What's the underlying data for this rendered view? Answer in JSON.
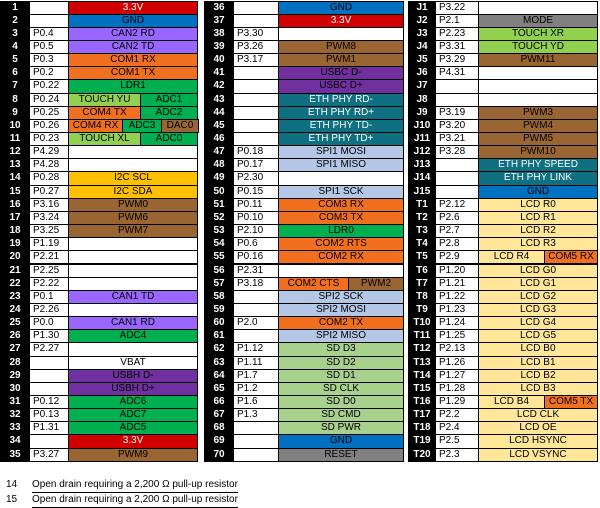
{
  "colors": {
    "red": "#d00000",
    "blue": "#0070c0",
    "gray": "#808080",
    "orange": "#f07020",
    "green": "#92d050",
    "green_dark": "#00b050",
    "blue_dark": "#0070c0",
    "purple": "#7030a0",
    "purple_light": "#9966ff",
    "teal": "#0e7080",
    "yellow": "#ffc000",
    "brown": "#996633",
    "lightblue": "#b4c7e7",
    "sage": "#a9d18e",
    "pale_yellow": "#ffe699",
    "white": "#ffffff"
  },
  "columns": [
    {
      "rows": [
        {
          "num": "1",
          "port": "",
          "funcs": [
            {
              "t": "3.3V",
              "c": "red"
            }
          ]
        },
        {
          "num": "2",
          "port": "",
          "funcs": [
            {
              "t": "GND",
              "c": "blue"
            }
          ]
        },
        {
          "num": "3",
          "port": "P0.4",
          "funcs": [
            {
              "t": "CAN2 RD",
              "c": "purple_light"
            }
          ]
        },
        {
          "num": "4",
          "port": "P0.5",
          "funcs": [
            {
              "t": "CAN2 TD",
              "c": "purple_light"
            }
          ]
        },
        {
          "num": "5",
          "port": "P0.3",
          "funcs": [
            {
              "t": "COM1 RX",
              "c": "orange"
            }
          ]
        },
        {
          "num": "6",
          "port": "P0.2",
          "funcs": [
            {
              "t": "COM1 TX",
              "c": "orange"
            }
          ]
        },
        {
          "num": "7",
          "port": "P0.22",
          "funcs": [
            {
              "t": "LDR1",
              "c": "green_dark"
            }
          ]
        },
        {
          "num": "8",
          "port": "P0.24",
          "funcs": [
            {
              "t": "TOUCH YU",
              "c": "green"
            },
            {
              "t": "ADC1",
              "c": "green_dark"
            }
          ]
        },
        {
          "num": "9",
          "port": "P0.25",
          "funcs": [
            {
              "t": "COM4 TX",
              "c": "orange"
            },
            {
              "t": "ADC2",
              "c": "green_dark"
            }
          ]
        },
        {
          "num": "10",
          "port": "P0.26",
          "funcs": [
            {
              "t": "COM4 RX",
              "c": "orange"
            },
            {
              "t": "ADC3",
              "c": "green_dark"
            },
            {
              "t": "DAC0",
              "c": "brown"
            }
          ]
        },
        {
          "num": "11",
          "port": "P0.23",
          "funcs": [
            {
              "t": "TOUCH XL",
              "c": "green"
            },
            {
              "t": "ADC0",
              "c": "green_dark"
            }
          ]
        },
        {
          "num": "12",
          "port": "P4.29",
          "funcs": []
        },
        {
          "num": "13",
          "port": "P4.28",
          "funcs": []
        },
        {
          "num": "14",
          "port": "P0.28",
          "funcs": [
            {
              "t": "I2C SCL",
              "c": "yellow"
            }
          ]
        },
        {
          "num": "15",
          "port": "P0.27",
          "funcs": [
            {
              "t": "I2C SDA",
              "c": "yellow"
            }
          ]
        },
        {
          "num": "16",
          "port": "P3.16",
          "funcs": [
            {
              "t": "PWM0",
              "c": "brown"
            }
          ]
        },
        {
          "num": "17",
          "port": "P3.24",
          "funcs": [
            {
              "t": "PWM6",
              "c": "brown"
            }
          ]
        },
        {
          "num": "18",
          "port": "P3.25",
          "funcs": [
            {
              "t": "PWM7",
              "c": "brown"
            }
          ]
        },
        {
          "num": "19",
          "port": "P1.19",
          "funcs": []
        },
        {
          "num": "20",
          "port": "P2.21",
          "funcs": []
        },
        {
          "num": "21",
          "port": "P2.25",
          "funcs": []
        },
        {
          "num": "22",
          "port": "P2.22",
          "funcs": []
        },
        {
          "num": "23",
          "port": "P0.1",
          "funcs": [
            {
              "t": "CAN1 TD",
              "c": "purple_light"
            }
          ]
        },
        {
          "num": "24",
          "port": "P2.26",
          "funcs": []
        },
        {
          "num": "25",
          "port": "P0.0",
          "funcs": [
            {
              "t": "CAN1 RD",
              "c": "purple_light"
            }
          ]
        },
        {
          "num": "26",
          "port": "P1.30",
          "funcs": [
            {
              "t": "ADC4",
              "c": "green_dark"
            }
          ]
        },
        {
          "num": "27",
          "port": "P2.27",
          "funcs": []
        },
        {
          "num": "28",
          "port": "",
          "funcs": [
            {
              "t": "VBAT",
              "c": "white"
            }
          ]
        },
        {
          "num": "29",
          "port": "",
          "funcs": [
            {
              "t": "USBH D-",
              "c": "purple"
            }
          ]
        },
        {
          "num": "30",
          "port": "",
          "funcs": [
            {
              "t": "USBH D+",
              "c": "purple"
            }
          ]
        },
        {
          "num": "31",
          "port": "P0.12",
          "funcs": [
            {
              "t": "ADC6",
              "c": "green_dark"
            }
          ]
        },
        {
          "num": "32",
          "port": "P0.13",
          "funcs": [
            {
              "t": "ADC7",
              "c": "green_dark"
            }
          ]
        },
        {
          "num": "33",
          "port": "P1.31",
          "funcs": [
            {
              "t": "ADC5",
              "c": "green_dark"
            }
          ]
        },
        {
          "num": "34",
          "port": "",
          "funcs": [
            {
              "t": "3.3V",
              "c": "red"
            }
          ]
        },
        {
          "num": "35",
          "port": "P3.27",
          "funcs": [
            {
              "t": "PWM9",
              "c": "brown"
            }
          ]
        }
      ]
    },
    {
      "rows": [
        {
          "num": "36",
          "port": "",
          "funcs": [
            {
              "t": "GND",
              "c": "blue"
            }
          ]
        },
        {
          "num": "37",
          "port": "",
          "funcs": [
            {
              "t": "3.3V",
              "c": "red"
            }
          ]
        },
        {
          "num": "38",
          "port": "P3.30",
          "funcs": []
        },
        {
          "num": "39",
          "port": "P3.26",
          "funcs": [
            {
              "t": "PWM8",
              "c": "brown"
            }
          ]
        },
        {
          "num": "40",
          "port": "P3.17",
          "funcs": [
            {
              "t": "PWM1",
              "c": "brown"
            }
          ]
        },
        {
          "num": "41",
          "port": "",
          "funcs": [
            {
              "t": "USBC D-",
              "c": "purple"
            }
          ]
        },
        {
          "num": "42",
          "port": "",
          "funcs": [
            {
              "t": "USBC D+",
              "c": "purple"
            }
          ]
        },
        {
          "num": "43",
          "port": "",
          "funcs": [
            {
              "t": "ETH PHY RD-",
              "c": "teal"
            }
          ]
        },
        {
          "num": "44",
          "port": "",
          "funcs": [
            {
              "t": "ETH PHY RD+",
              "c": "teal"
            }
          ]
        },
        {
          "num": "45",
          "port": "",
          "funcs": [
            {
              "t": "ETH PHY TD-",
              "c": "teal"
            }
          ]
        },
        {
          "num": "46",
          "port": "",
          "funcs": [
            {
              "t": "ETH PHY TD+",
              "c": "teal"
            }
          ]
        },
        {
          "num": "47",
          "port": "P0.18",
          "funcs": [
            {
              "t": "SPI1 MOSI",
              "c": "lightblue"
            }
          ]
        },
        {
          "num": "48",
          "port": "P0.17",
          "funcs": [
            {
              "t": "SPI1 MISO",
              "c": "lightblue"
            }
          ]
        },
        {
          "num": "49",
          "port": "P2.30",
          "funcs": []
        },
        {
          "num": "50",
          "port": "P0.15",
          "funcs": [
            {
              "t": "SPI1 SCK",
              "c": "lightblue"
            }
          ]
        },
        {
          "num": "51",
          "port": "P0.11",
          "funcs": [
            {
              "t": "COM3 RX",
              "c": "orange"
            }
          ]
        },
        {
          "num": "52",
          "port": "P0.10",
          "funcs": [
            {
              "t": "COM3 TX",
              "c": "orange"
            }
          ]
        },
        {
          "num": "53",
          "port": "P2.10",
          "funcs": [
            {
              "t": "LDR0",
              "c": "green_dark"
            }
          ]
        },
        {
          "num": "54",
          "port": "P0.6",
          "funcs": [
            {
              "t": "COM2 RTS",
              "c": "orange"
            }
          ]
        },
        {
          "num": "55",
          "port": "P0.16",
          "funcs": [
            {
              "t": "COM2 RX",
              "c": "orange"
            }
          ]
        },
        {
          "num": "56",
          "port": "P2.31",
          "funcs": []
        },
        {
          "num": "57",
          "port": "P3.18",
          "funcs": [
            {
              "t": "COM2 CTS",
              "c": "orange"
            },
            {
              "t": "PWM2",
              "c": "brown"
            }
          ]
        },
        {
          "num": "58",
          "port": "",
          "funcs": [
            {
              "t": "SPI2 SCK",
              "c": "lightblue"
            }
          ]
        },
        {
          "num": "59",
          "port": "",
          "funcs": [
            {
              "t": "SPI2 MOSI",
              "c": "lightblue"
            }
          ]
        },
        {
          "num": "60",
          "port": "P2.0",
          "funcs": [
            {
              "t": "COM2 TX",
              "c": "orange"
            }
          ]
        },
        {
          "num": "61",
          "port": "",
          "funcs": [
            {
              "t": "SPI2 MISO",
              "c": "lightblue"
            }
          ]
        },
        {
          "num": "62",
          "port": "P1.12",
          "funcs": [
            {
              "t": "SD D3",
              "c": "sage"
            }
          ]
        },
        {
          "num": "63",
          "port": "P1.11",
          "funcs": [
            {
              "t": "SD D2",
              "c": "sage"
            }
          ]
        },
        {
          "num": "64",
          "port": "P1.7",
          "funcs": [
            {
              "t": "SD D1",
              "c": "sage"
            }
          ]
        },
        {
          "num": "65",
          "port": "P1.2",
          "funcs": [
            {
              "t": "SD CLK",
              "c": "sage"
            }
          ]
        },
        {
          "num": "66",
          "port": "P1.6",
          "funcs": [
            {
              "t": "SD D0",
              "c": "sage"
            }
          ]
        },
        {
          "num": "67",
          "port": "P1.3",
          "funcs": [
            {
              "t": "SD CMD",
              "c": "sage"
            }
          ]
        },
        {
          "num": "68",
          "port": "",
          "funcs": [
            {
              "t": "SD PWR",
              "c": "sage"
            }
          ]
        },
        {
          "num": "69",
          "port": "",
          "funcs": [
            {
              "t": "GND",
              "c": "blue"
            }
          ]
        },
        {
          "num": "70",
          "port": "",
          "funcs": [
            {
              "t": "RESET",
              "c": "gray"
            }
          ]
        }
      ]
    },
    {
      "rows": [
        {
          "num": "J1",
          "port": "P3.22",
          "funcs": []
        },
        {
          "num": "J2",
          "port": "P2.1",
          "funcs": [
            {
              "t": "MODE",
              "c": "gray"
            }
          ]
        },
        {
          "num": "J3",
          "port": "P2.23",
          "funcs": [
            {
              "t": "TOUCH XR",
              "c": "green"
            }
          ]
        },
        {
          "num": "J4",
          "port": "P3.31",
          "funcs": [
            {
              "t": "TOUCH YD",
              "c": "green"
            }
          ]
        },
        {
          "num": "J5",
          "port": "P3.29",
          "funcs": [
            {
              "t": "PWM11",
              "c": "brown"
            }
          ]
        },
        {
          "num": "J6",
          "port": "P4.31",
          "funcs": []
        },
        {
          "num": "J7",
          "port": "",
          "funcs": []
        },
        {
          "num": "J8",
          "port": "",
          "funcs": []
        },
        {
          "num": "J9",
          "port": "P3.19",
          "funcs": [
            {
              "t": "PWM3",
              "c": "brown"
            }
          ]
        },
        {
          "num": "J10",
          "port": "P3.20",
          "funcs": [
            {
              "t": "PWM4",
              "c": "brown"
            }
          ]
        },
        {
          "num": "J11",
          "port": "P3.21",
          "funcs": [
            {
              "t": "PWM5",
              "c": "brown"
            }
          ]
        },
        {
          "num": "J12",
          "port": "P3.28",
          "funcs": [
            {
              "t": "PWM10",
              "c": "brown"
            }
          ]
        },
        {
          "num": "J13",
          "port": "",
          "funcs": [
            {
              "t": "ETH PHY SPEED",
              "c": "teal"
            }
          ]
        },
        {
          "num": "J14",
          "port": "",
          "funcs": [
            {
              "t": "ETH PHY LINK",
              "c": "teal"
            }
          ]
        },
        {
          "num": "J15",
          "port": "",
          "funcs": [
            {
              "t": "GND",
              "c": "blue"
            }
          ]
        },
        {
          "num": "T1",
          "port": "P2.12",
          "funcs": [
            {
              "t": "LCD R0",
              "c": "pale_yellow"
            }
          ]
        },
        {
          "num": "T2",
          "port": "P2.6",
          "funcs": [
            {
              "t": "LCD R1",
              "c": "pale_yellow"
            }
          ]
        },
        {
          "num": "T3",
          "port": "P2.7",
          "funcs": [
            {
              "t": "LCD R2",
              "c": "pale_yellow"
            }
          ]
        },
        {
          "num": "T4",
          "port": "P2.8",
          "funcs": [
            {
              "t": "LCD R3",
              "c": "pale_yellow"
            }
          ]
        },
        {
          "num": "T5",
          "port": "P2.9",
          "funcs": [
            {
              "t": "LCD R4",
              "c": "pale_yellow"
            },
            {
              "t": "COM5 RX",
              "c": "orange"
            }
          ]
        },
        {
          "num": "T6",
          "port": "P1.20",
          "funcs": [
            {
              "t": "LCD G0",
              "c": "pale_yellow"
            }
          ]
        },
        {
          "num": "T7",
          "port": "P1.21",
          "funcs": [
            {
              "t": "LCD G1",
              "c": "pale_yellow"
            }
          ]
        },
        {
          "num": "T8",
          "port": "P1.22",
          "funcs": [
            {
              "t": "LCD G2",
              "c": "pale_yellow"
            }
          ]
        },
        {
          "num": "T9",
          "port": "P1.23",
          "funcs": [
            {
              "t": "LCD G3",
              "c": "pale_yellow"
            }
          ]
        },
        {
          "num": "T10",
          "port": "P1.24",
          "funcs": [
            {
              "t": "LCD G4",
              "c": "pale_yellow"
            }
          ]
        },
        {
          "num": "T11",
          "port": "P1.25",
          "funcs": [
            {
              "t": "LCD G5",
              "c": "pale_yellow"
            }
          ]
        },
        {
          "num": "T12",
          "port": "P2.13",
          "funcs": [
            {
              "t": "LCD B0",
              "c": "pale_yellow"
            }
          ]
        },
        {
          "num": "T13",
          "port": "P1.26",
          "funcs": [
            {
              "t": "LCD B1",
              "c": "pale_yellow"
            }
          ]
        },
        {
          "num": "T14",
          "port": "P1.27",
          "funcs": [
            {
              "t": "LCD B2",
              "c": "pale_yellow"
            }
          ]
        },
        {
          "num": "T15",
          "port": "P1.28",
          "funcs": [
            {
              "t": "LCD B3",
              "c": "pale_yellow"
            }
          ]
        },
        {
          "num": "T16",
          "port": "P1.29",
          "funcs": [
            {
              "t": "LCD B4",
              "c": "pale_yellow"
            },
            {
              "t": "COM5 TX",
              "c": "orange"
            }
          ]
        },
        {
          "num": "T17",
          "port": "P2.2",
          "funcs": [
            {
              "t": "LCD CLK",
              "c": "pale_yellow"
            }
          ]
        },
        {
          "num": "T18",
          "port": "P2.4",
          "funcs": [
            {
              "t": "LCD OE",
              "c": "pale_yellow"
            }
          ]
        },
        {
          "num": "T19",
          "port": "P2.5",
          "funcs": [
            {
              "t": "LCD HSYNC",
              "c": "pale_yellow"
            }
          ]
        },
        {
          "num": "T20",
          "port": "P2.3",
          "funcs": [
            {
              "t": "LCD VSYNC",
              "c": "pale_yellow"
            }
          ]
        }
      ]
    }
  ],
  "notes": [
    {
      "num": "14",
      "text": "Open drain requiring a 2,200 Ω pull-up resistor"
    },
    {
      "num": "15",
      "text": "Open drain requiring a 2,200 Ω pull-up resistor"
    }
  ]
}
